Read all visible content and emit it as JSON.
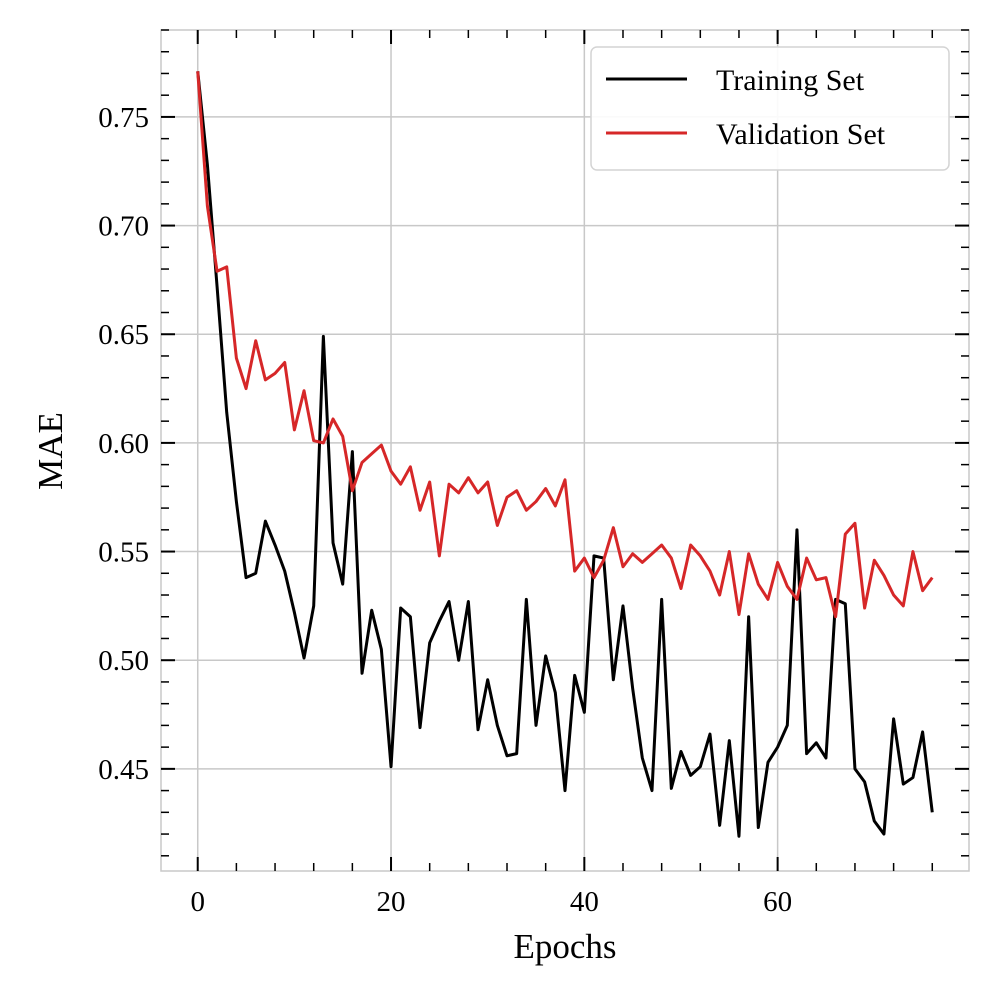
{
  "chart_data": {
    "type": "line",
    "title": "",
    "xlabel": "Epochs",
    "ylabel": "MAE",
    "xlim": [
      -3.8,
      79.8
    ],
    "ylim": [
      0.403,
      0.79
    ],
    "xticks": [
      0,
      20,
      40,
      60
    ],
    "xtick_labels": [
      "0",
      "20",
      "40",
      "60"
    ],
    "yticks": [
      0.45,
      0.5,
      0.55,
      0.6,
      0.65,
      0.7,
      0.75
    ],
    "ytick_labels": [
      "0.45",
      "0.50",
      "0.55",
      "0.60",
      "0.65",
      "0.70",
      "0.75"
    ],
    "grid": true,
    "legend_position": "top-right",
    "x": [
      0,
      1,
      2,
      3,
      4,
      5,
      6,
      7,
      8,
      9,
      10,
      11,
      12,
      13,
      14,
      15,
      16,
      17,
      18,
      19,
      20,
      21,
      22,
      23,
      24,
      25,
      26,
      27,
      28,
      29,
      30,
      31,
      32,
      33,
      34,
      35,
      36,
      37,
      38,
      39,
      40,
      41,
      42,
      43,
      44,
      45,
      46,
      47,
      48,
      49,
      50,
      51,
      52,
      53,
      54,
      55,
      56,
      57,
      58,
      59,
      60,
      61,
      62,
      63,
      64,
      65,
      66,
      67,
      68,
      69,
      70,
      71,
      72,
      73,
      74,
      75,
      76
    ],
    "series": [
      {
        "name": "Training Set",
        "color": "#000000",
        "values": [
          0.771,
          0.728,
          0.672,
          0.614,
          0.573,
          0.538,
          0.54,
          0.564,
          0.553,
          0.541,
          0.522,
          0.501,
          0.525,
          0.649,
          0.554,
          0.535,
          0.596,
          0.494,
          0.523,
          0.505,
          0.451,
          0.524,
          0.52,
          0.469,
          0.508,
          0.518,
          0.527,
          0.5,
          0.527,
          0.468,
          0.491,
          0.47,
          0.456,
          0.457,
          0.528,
          0.47,
          0.502,
          0.485,
          0.44,
          0.493,
          0.476,
          0.548,
          0.547,
          0.491,
          0.525,
          0.487,
          0.455,
          0.44,
          0.528,
          0.441,
          0.458,
          0.447,
          0.451,
          0.466,
          0.424,
          0.463,
          0.419,
          0.52,
          0.423,
          0.453,
          0.46,
          0.47,
          0.56,
          0.457,
          0.462,
          0.455,
          0.528,
          0.526,
          0.45,
          0.444,
          0.426,
          0.42,
          0.473,
          0.443,
          0.446,
          0.467,
          0.43
        ]
      },
      {
        "name": "Validation Set",
        "color": "#d62728",
        "values": [
          0.771,
          0.709,
          0.679,
          0.681,
          0.639,
          0.625,
          0.647,
          0.629,
          0.632,
          0.637,
          0.606,
          0.624,
          0.601,
          0.6,
          0.611,
          0.603,
          0.578,
          0.591,
          0.595,
          0.599,
          0.587,
          0.581,
          0.589,
          0.569,
          0.582,
          0.548,
          0.581,
          0.577,
          0.584,
          0.577,
          0.582,
          0.562,
          0.575,
          0.578,
          0.569,
          0.573,
          0.579,
          0.571,
          0.583,
          0.541,
          0.547,
          0.538,
          0.546,
          0.561,
          0.543,
          0.549,
          0.545,
          0.549,
          0.553,
          0.547,
          0.533,
          0.553,
          0.548,
          0.541,
          0.53,
          0.55,
          0.521,
          0.549,
          0.535,
          0.528,
          0.545,
          0.534,
          0.528,
          0.547,
          0.537,
          0.538,
          0.52,
          0.558,
          0.563,
          0.524,
          0.546,
          0.539,
          0.53,
          0.525,
          0.55,
          0.532,
          0.538
        ]
      }
    ]
  }
}
